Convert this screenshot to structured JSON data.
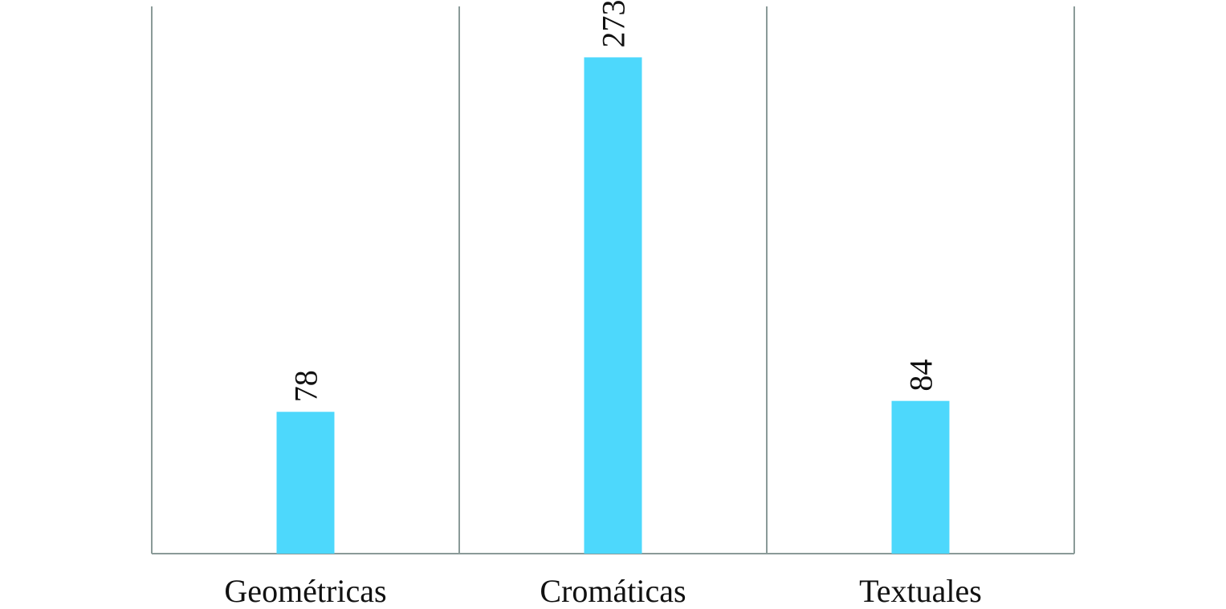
{
  "chart_data": {
    "type": "bar",
    "categories": [
      "Geométricas",
      "Cromáticas",
      "Textuales"
    ],
    "values": [
      78,
      273,
      84
    ],
    "title": "",
    "xlabel": "",
    "ylabel": "",
    "ylim": [
      0,
      301
    ],
    "grid": "vertical separators between categories",
    "legend": "none",
    "colors": {
      "bar": "#4dd8fc",
      "axis": "#8a9a98"
    }
  }
}
